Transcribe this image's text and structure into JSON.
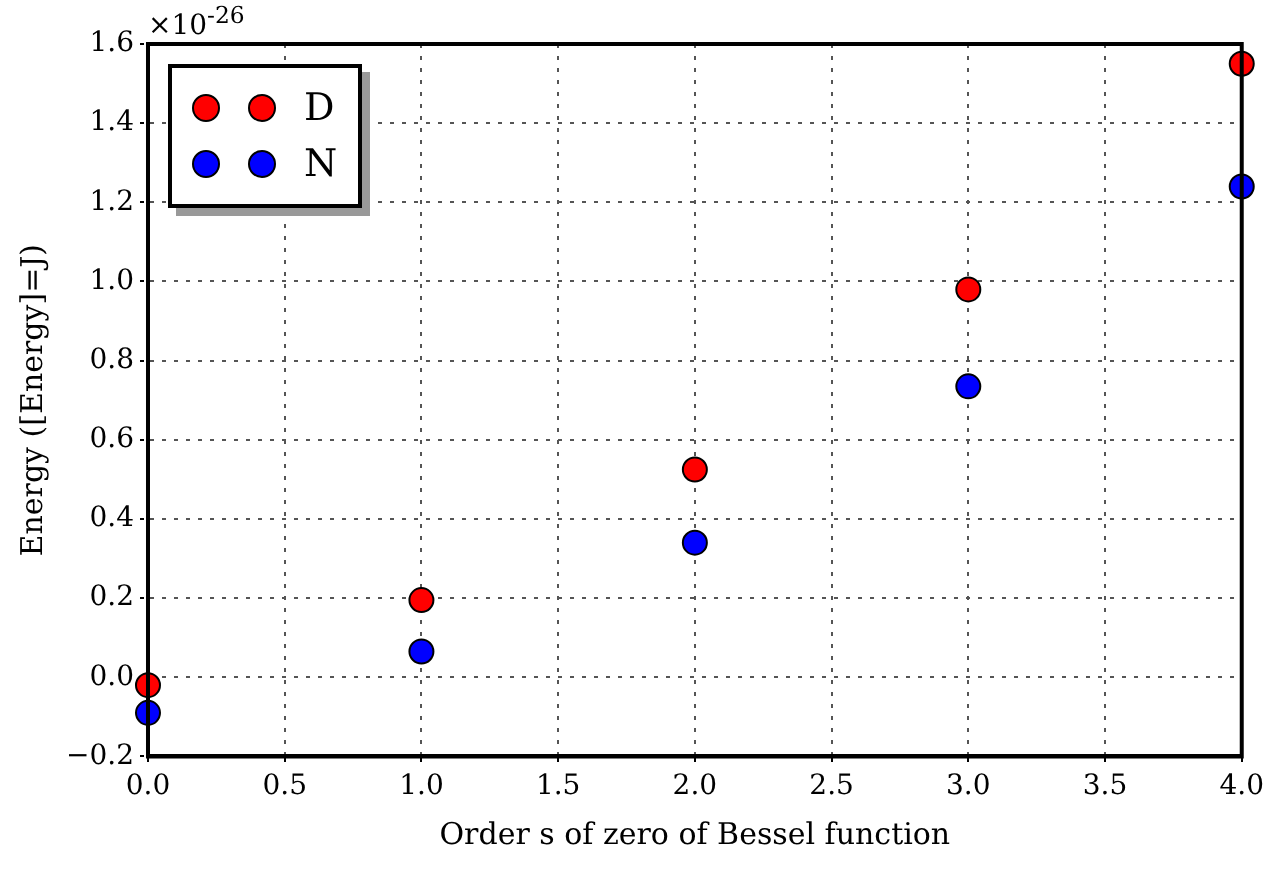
{
  "chart_data": {
    "type": "scatter",
    "xlabel": "Order s of zero of Bessel function",
    "ylabel": "Energy ([Energy]=J)",
    "annotations": [
      "×10$^{-26}$"
    ],
    "x": [
      0,
      1,
      2,
      3,
      4
    ],
    "series": [
      {
        "name": "D",
        "color": "#ff0000",
        "values": [
          -0.02,
          0.195,
          0.525,
          0.98,
          1.55
        ]
      },
      {
        "name": "N",
        "color": "#0000ff",
        "values": [
          -0.09,
          0.065,
          0.34,
          0.735,
          1.24
        ]
      }
    ],
    "xlim": [
      0,
      4
    ],
    "xticks": [
      {
        "value": 0,
        "label": "0.0"
      },
      {
        "value": 0.5,
        "label": "0.5"
      },
      {
        "value": 1,
        "label": "1.0"
      },
      {
        "value": 1.5,
        "label": "1.5"
      },
      {
        "value": 2,
        "label": "2.0"
      },
      {
        "value": 2.5,
        "label": "2.5"
      },
      {
        "value": 3,
        "label": "3.0"
      },
      {
        "value": 3.5,
        "label": "3.5"
      },
      {
        "value": 4,
        "label": "4.0"
      }
    ],
    "ylim": [
      -0.2,
      1.6
    ],
    "yticks": [
      {
        "value": -0.2,
        "label": "−0.2"
      },
      {
        "value": 0,
        "label": "0.0"
      },
      {
        "value": 0.2,
        "label": "0.2"
      },
      {
        "value": 0.4,
        "label": "0.4"
      },
      {
        "value": 0.6,
        "label": "0.6"
      },
      {
        "value": 0.8,
        "label": "0.8"
      },
      {
        "value": 1,
        "label": "1.0"
      },
      {
        "value": 1.2,
        "label": "1.2"
      },
      {
        "value": 1.4,
        "label": "1.4"
      },
      {
        "value": 1.6,
        "label": "1.6"
      }
    ],
    "grid": true,
    "legend": "top left",
    "marker": "circle"
  }
}
